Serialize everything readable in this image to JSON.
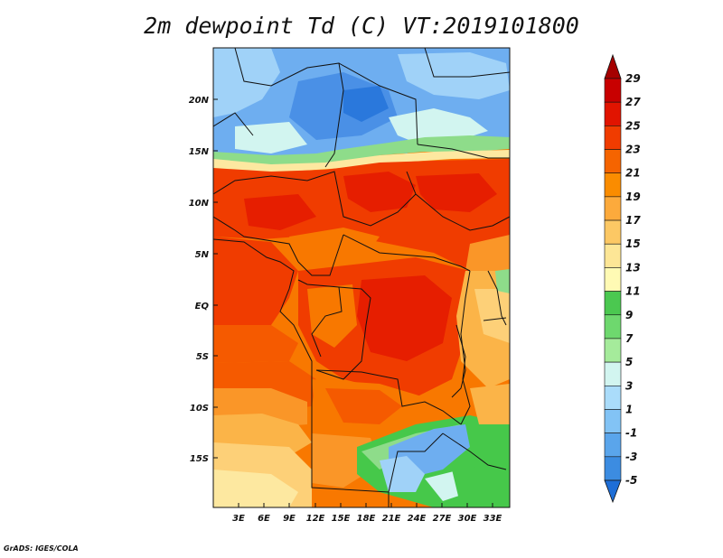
{
  "title": "2m dewpoint Td (C) VT:2019101800",
  "credit": "GrADS: IGES/COLA",
  "map": {
    "lon_labels": [
      "3E",
      "6E",
      "9E",
      "12E",
      "15E",
      "18E",
      "21E",
      "24E",
      "27E",
      "30E",
      "33E"
    ],
    "lat_labels": [
      "20N",
      "15N",
      "10N",
      "5N",
      "EQ",
      "5S",
      "10S",
      "15S"
    ]
  },
  "colorbar": {
    "labels": [
      "29",
      "27",
      "25",
      "23",
      "21",
      "19",
      "17",
      "15",
      "13",
      "11",
      "9",
      "7",
      "5",
      "3",
      "1",
      "-1",
      "-3",
      "-5"
    ],
    "colors": [
      "#a50000",
      "#c80000",
      "#e11400",
      "#f03c00",
      "#f56400",
      "#fa8c00",
      "#fcaa3c",
      "#fcc864",
      "#fde696",
      "#fffab4",
      "#4bc850",
      "#6ed86e",
      "#a5eb9b",
      "#d2f5f0",
      "#aadcfa",
      "#82c3f5",
      "#5aa5eb",
      "#3c8ce1",
      "#1e6ed7"
    ],
    "top_color": "#a50000",
    "bottom_color": "#1e6ed7"
  },
  "field_colors": {
    "deep_red": "#e61e00",
    "red": "#f03c00",
    "red_orange": "#f55a00",
    "orange": "#f87800",
    "light_orange": "#fa9628",
    "amber": "#fbb448",
    "yellow": "#fdd078",
    "pale_yellow": "#fde8a0",
    "green": "#46c84a",
    "light_green": "#8edc8a",
    "pale_cyan": "#d2f5f0",
    "light_blue": "#a0d2f8",
    "blue": "#6eaef0",
    "mid_blue": "#4a90e6",
    "deep_blue": "#2a78dc"
  }
}
